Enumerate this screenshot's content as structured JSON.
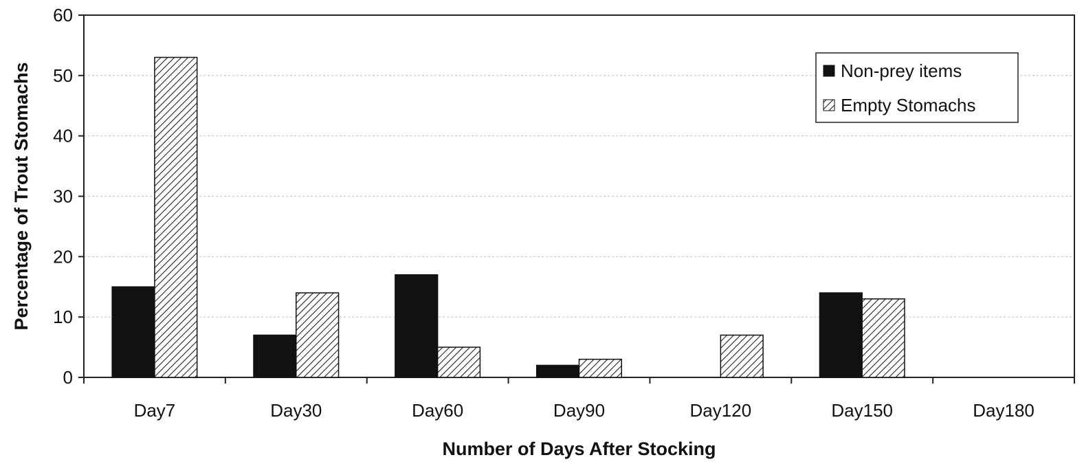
{
  "chart_data": {
    "type": "bar",
    "title": "",
    "xlabel": "Number of  Days After Stocking",
    "ylabel": "Percentage of Trout Stomachs",
    "categories": [
      "Day7",
      "Day30",
      "Day60",
      "Day90",
      "Day120",
      "Day150",
      "Day180"
    ],
    "series": [
      {
        "name": "Non-prey items",
        "values": [
          15,
          7,
          17,
          2,
          0,
          14,
          0
        ],
        "color": "#111111",
        "fill": "solid"
      },
      {
        "name": "Empty Stomachs",
        "values": [
          53,
          14,
          5,
          3,
          7,
          13,
          0
        ],
        "color": "#dddddd",
        "fill": "hatched"
      }
    ],
    "ylim": [
      0,
      60
    ],
    "yticks": [
      "0",
      "10",
      "20",
      "30",
      "40",
      "50",
      "60"
    ],
    "grid": true,
    "legend_position": "top-right"
  }
}
